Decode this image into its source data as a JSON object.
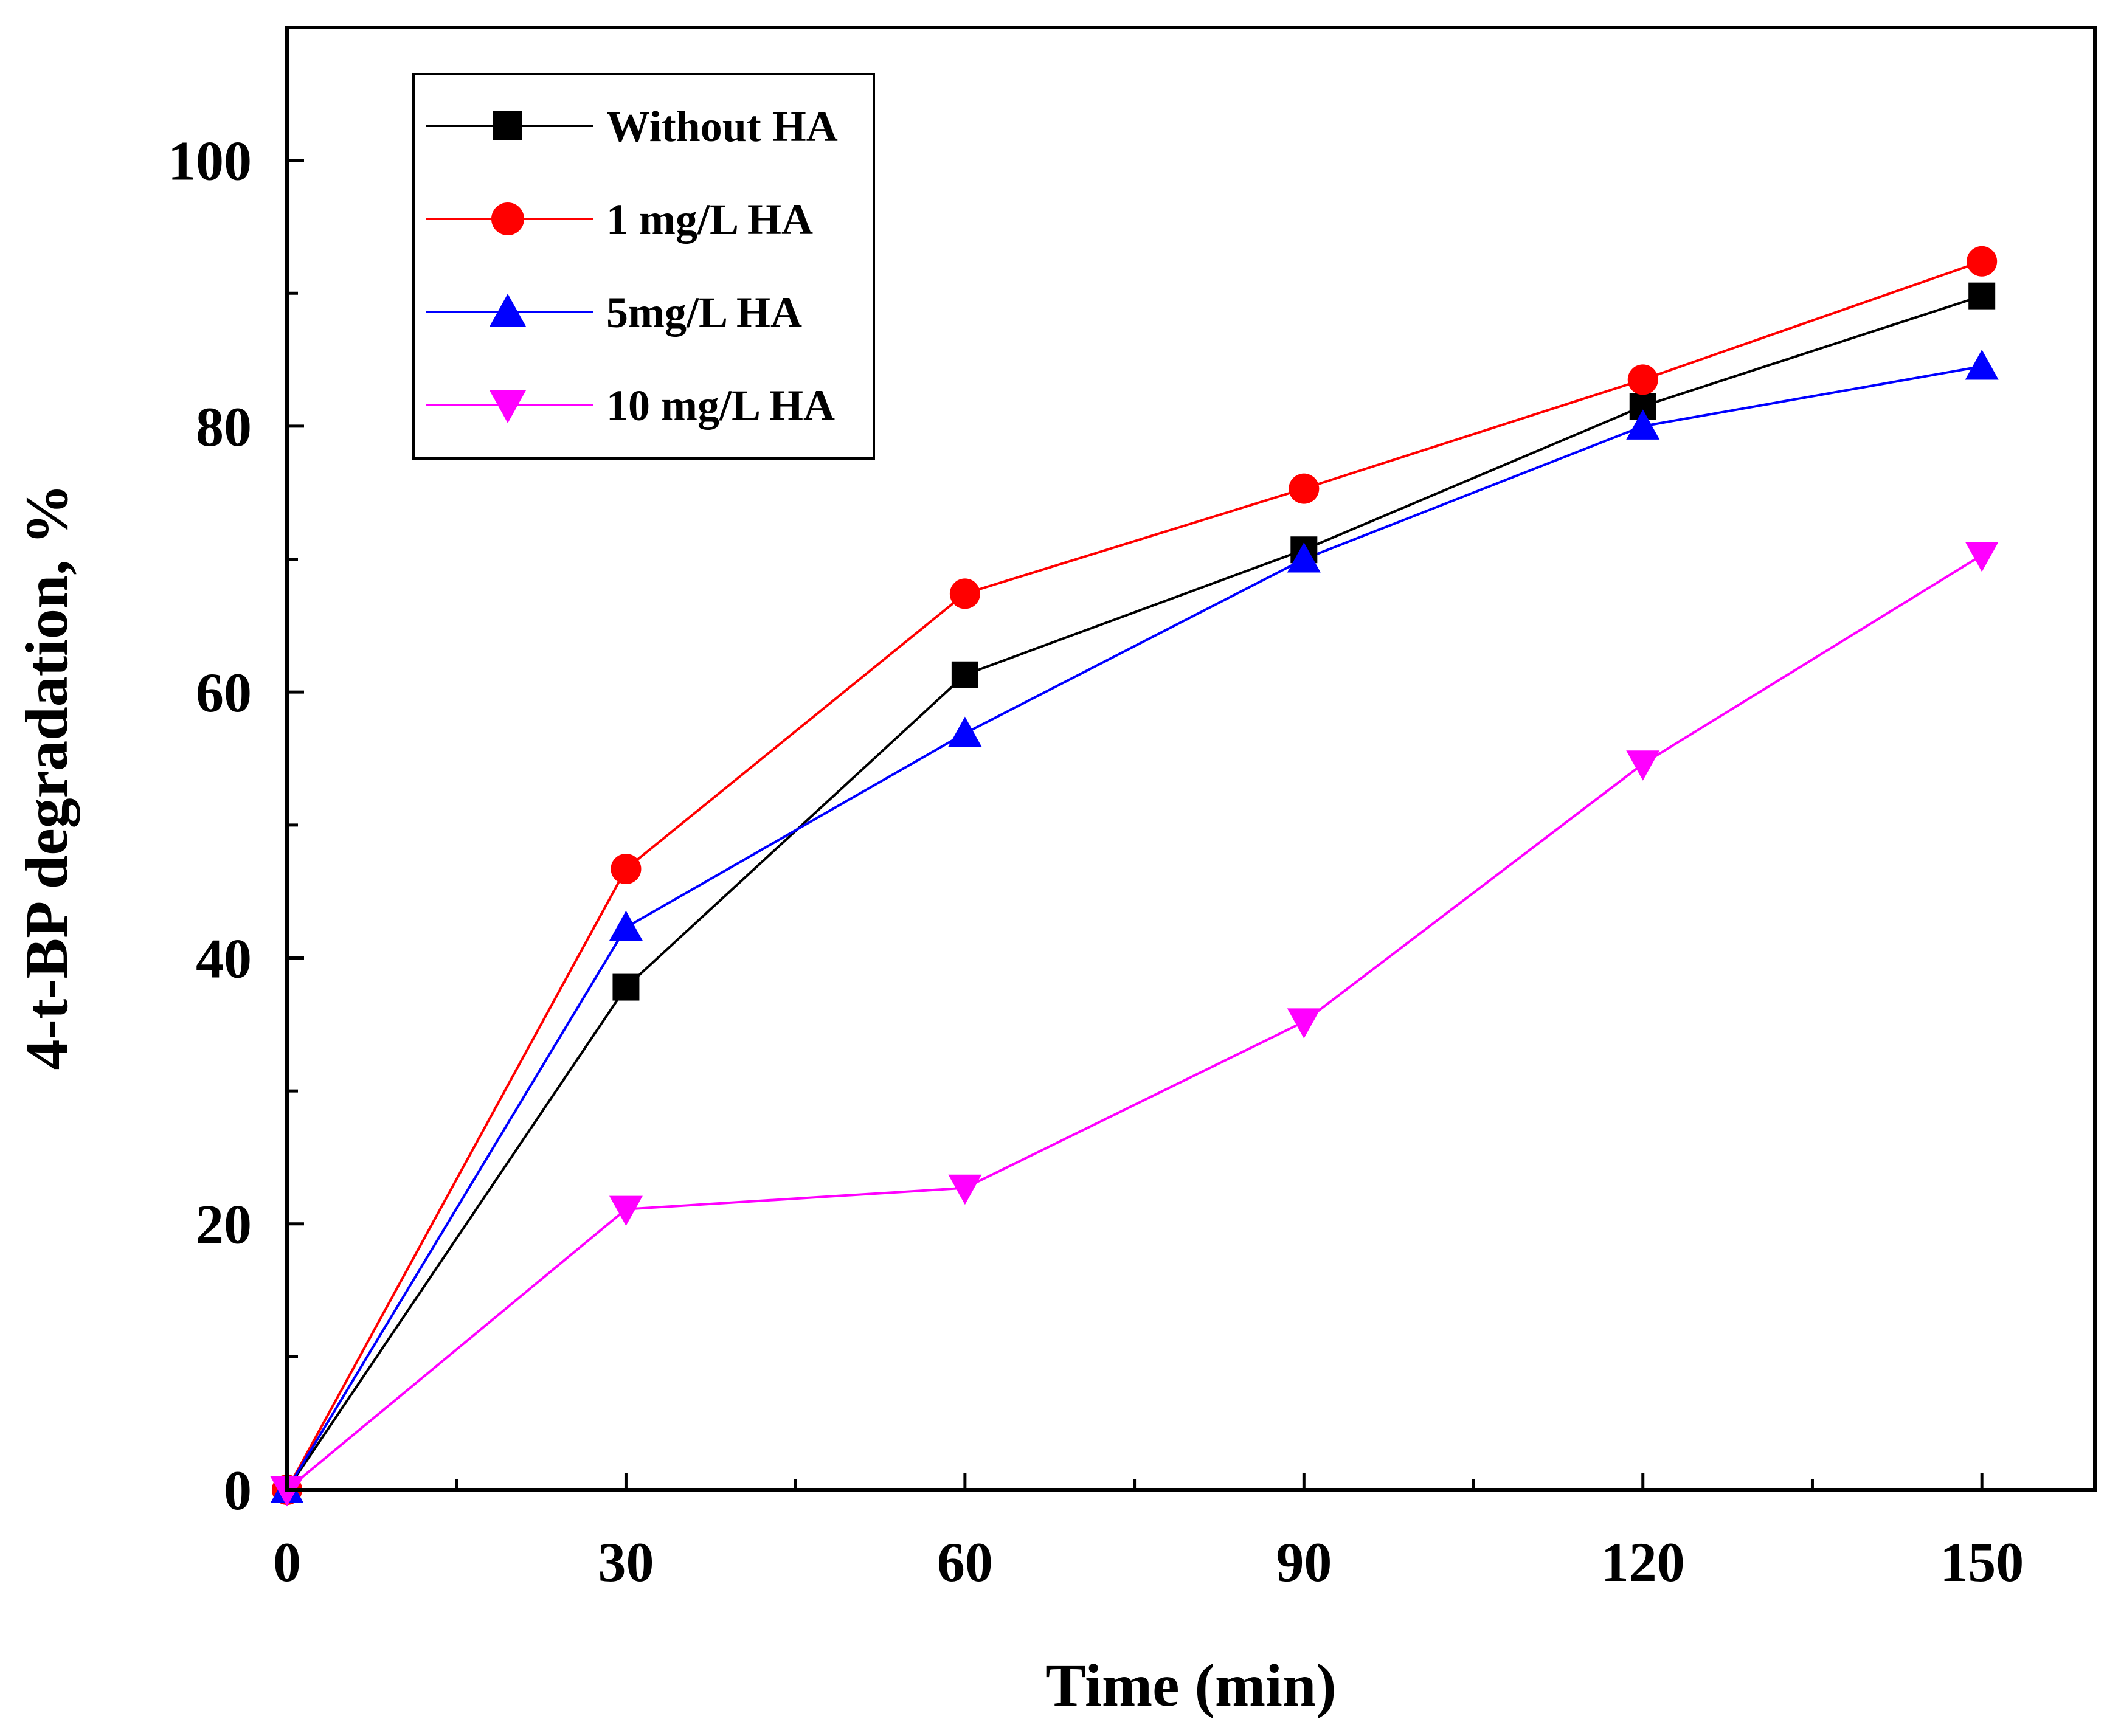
{
  "chart_data": {
    "type": "line",
    "title": "",
    "xlabel": "Time (min)",
    "ylabel": "4-t-BP degradation, %",
    "x": [
      0,
      30,
      60,
      90,
      120,
      150
    ],
    "xlim": [
      0,
      160
    ],
    "ylim": [
      0,
      110
    ],
    "xticks": [
      0,
      30,
      60,
      90,
      120,
      150
    ],
    "xtick_labels": [
      "0",
      "30",
      "60",
      "90",
      "120",
      "150"
    ],
    "yticks": [
      0,
      20,
      40,
      60,
      80,
      100
    ],
    "ytick_labels": [
      "0",
      "20",
      "40",
      "60",
      "80",
      "100"
    ],
    "grid": false,
    "legend_position": "top-left",
    "series": [
      {
        "name": "Without HA",
        "color": "#000000",
        "marker": "square",
        "values": [
          0,
          37.8,
          61.3,
          70.7,
          81.5,
          89.8
        ]
      },
      {
        "name": "1 mg/L HA",
        "color": "#ff0000",
        "marker": "circle",
        "values": [
          0,
          46.7,
          67.4,
          75.3,
          83.5,
          92.4
        ]
      },
      {
        "name": "5mg/L HA",
        "color": "#0000ff",
        "marker": "triangle-up",
        "values": [
          0,
          42.3,
          56.9,
          70.0,
          80.0,
          84.5
        ]
      },
      {
        "name": "10 mg/L HA",
        "color": "#ff00ff",
        "marker": "triangle-down",
        "values": [
          0,
          21.1,
          22.7,
          35.2,
          54.6,
          70.3
        ]
      }
    ]
  }
}
